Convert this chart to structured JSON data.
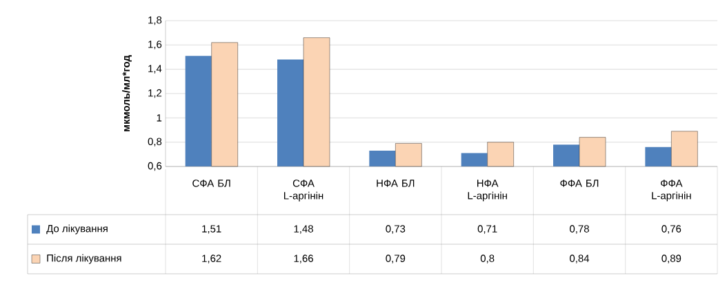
{
  "chart_data": {
    "type": "bar",
    "ylabel": "мкмоль/мл*год",
    "categories": [
      "СФА БЛ",
      "СФА L-аргінін",
      "НФА БЛ",
      "НФА L-аргінін",
      "ФФА БЛ",
      "ФФА L-аргінін"
    ],
    "series": [
      {
        "name": "До лікування",
        "color": "#4f81bd",
        "values": [
          1.51,
          1.48,
          0.73,
          0.71,
          0.78,
          0.76
        ],
        "value_labels": [
          "1,51",
          "1,48",
          "0,73",
          "0,71",
          "0,78",
          "0,76"
        ]
      },
      {
        "name": "Після лікування",
        "color": "#fbd4b4",
        "values": [
          1.62,
          1.66,
          0.79,
          0.8,
          0.84,
          0.89
        ],
        "value_labels": [
          "1,62",
          "1,66",
          "0,79",
          "0,8",
          "0,84",
          "0,89"
        ]
      }
    ],
    "ylim": [
      0.6,
      1.8
    ],
    "yticks": [
      {
        "value": 0.6,
        "label": "0,6"
      },
      {
        "value": 0.8,
        "label": "0,8"
      },
      {
        "value": 1,
        "label": "1"
      },
      {
        "value": 1.2,
        "label": "1,2"
      },
      {
        "value": 1.4,
        "label": "1,4"
      },
      {
        "value": 1.6,
        "label": "1,6"
      },
      {
        "value": 1.8,
        "label": "1,8"
      }
    ],
    "grid": "y",
    "legend": "bottom left"
  }
}
